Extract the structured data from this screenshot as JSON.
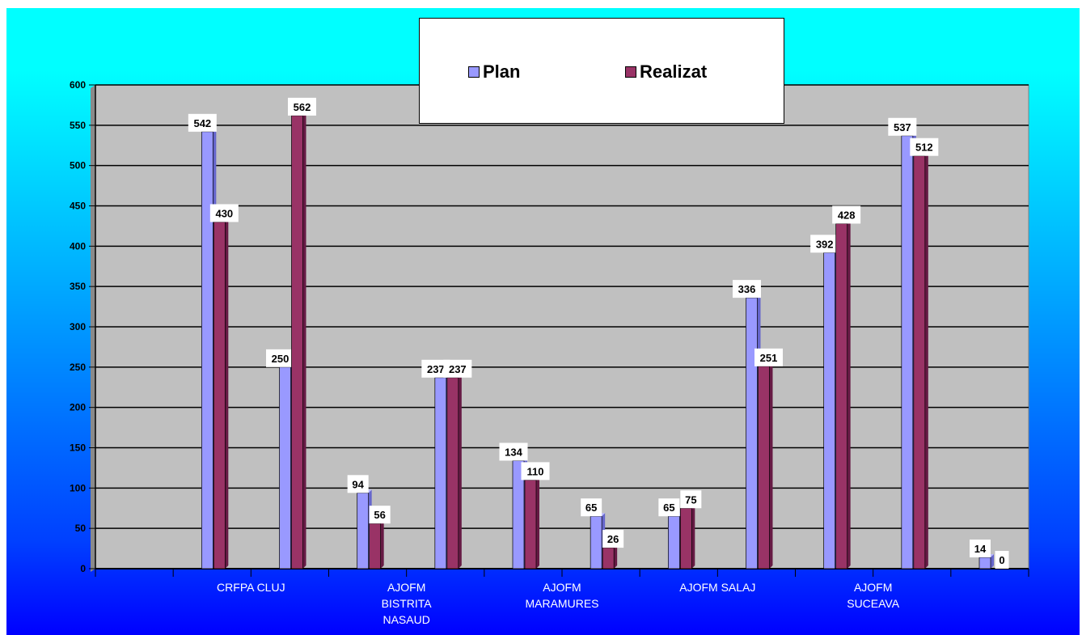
{
  "chart_data": {
    "type": "bar",
    "categories": [
      "",
      "CRFPA CLUJ",
      "",
      "AJOFM BISTRITA NASAUD",
      "",
      "AJOFM MARAMURES",
      "",
      "AJOFM SALAJ",
      "",
      "AJOFM SUCEAVA",
      "",
      ""
    ],
    "series": [
      {
        "name": "Plan",
        "values": [
          null,
          542,
          250,
          94,
          237,
          134,
          65,
          65,
          336,
          392,
          537,
          14
        ],
        "color": "#9999ff"
      },
      {
        "name": "Realizat",
        "values": [
          null,
          430,
          562,
          56,
          237,
          110,
          26,
          75,
          251,
          428,
          512,
          0
        ],
        "color": "#993366"
      }
    ],
    "ylim": [
      0,
      600
    ],
    "yticks": [
      0,
      50,
      100,
      150,
      200,
      250,
      300,
      350,
      400,
      450,
      500,
      550,
      600
    ],
    "grid": true,
    "legend_position": "top-center",
    "plot_bg": "#c0c0c0"
  },
  "legend": {
    "plan_label": "Plan",
    "realizat_label": "Realizat"
  }
}
